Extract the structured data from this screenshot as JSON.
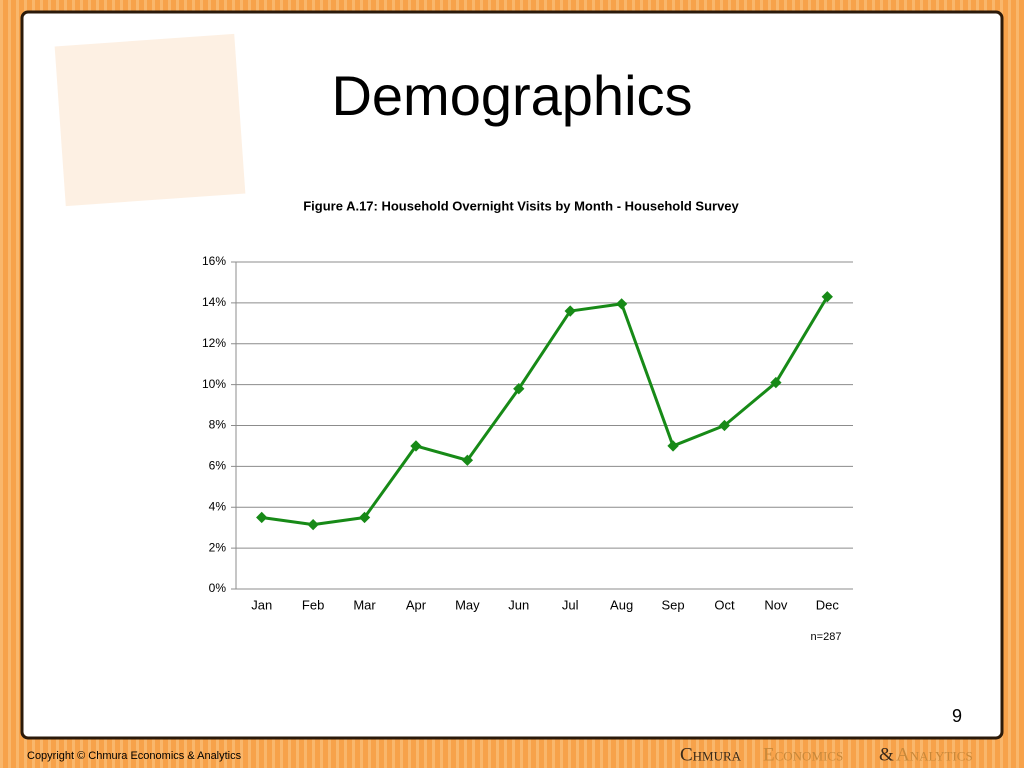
{
  "slide": {
    "title": "Demographics",
    "note": "n=287",
    "page_number": "9",
    "copyright": "Copyright © Chmura Economics & Analytics",
    "logo": [
      "Chmura",
      "Economics",
      "&",
      "Analytics"
    ]
  },
  "chart_data": {
    "type": "line",
    "title": "Figure A.17: Household Overnight Visits by Month - Household Survey",
    "categories": [
      "Jan",
      "Feb",
      "Mar",
      "Apr",
      "May",
      "Jun",
      "Jul",
      "Aug",
      "Sep",
      "Oct",
      "Nov",
      "Dec"
    ],
    "values": [
      3.5,
      3.15,
      3.5,
      7.0,
      6.3,
      9.8,
      13.6,
      13.95,
      7.0,
      8.0,
      10.1,
      14.3
    ],
    "color": "#178a17",
    "ylim": [
      0,
      16
    ],
    "yticks": [
      {
        "value": 0,
        "label": "0%"
      },
      {
        "value": 2,
        "label": "2%"
      },
      {
        "value": 4,
        "label": "4%"
      },
      {
        "value": 6,
        "label": "6%"
      },
      {
        "value": 8,
        "label": "8%"
      },
      {
        "value": 10,
        "label": "10%"
      },
      {
        "value": 12,
        "label": "12%"
      },
      {
        "value": 14,
        "label": "14%"
      },
      {
        "value": 16,
        "label": "16%"
      }
    ],
    "grid": true
  }
}
